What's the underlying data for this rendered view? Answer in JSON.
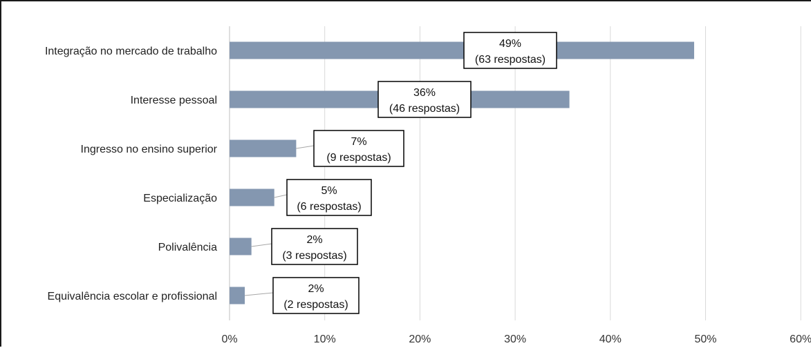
{
  "chart_data": {
    "type": "bar",
    "orientation": "horizontal",
    "title": "",
    "xlabel": "",
    "ylabel": "",
    "xlim": [
      0,
      60
    ],
    "x_ticks": [
      "0%",
      "10%",
      "20%",
      "30%",
      "40%",
      "50%",
      "60%"
    ],
    "grid": true,
    "bar_color": "#8497B0",
    "categories": [
      "Integração no mercado de trabalho",
      "Interesse pessoal",
      "Ingresso no ensino superior",
      "Especialização",
      "Polivalência",
      "Equivalência escolar e profissional"
    ],
    "values": [
      48.8,
      35.7,
      7.0,
      4.7,
      2.3,
      1.6
    ],
    "data_labels": [
      {
        "percent": "49%",
        "responses": "(63 respostas)"
      },
      {
        "percent": "36%",
        "responses": "(46 respostas)"
      },
      {
        "percent": "7%",
        "responses": "(9 respostas)"
      },
      {
        "percent": "5%",
        "responses": "(6 respostas)"
      },
      {
        "percent": "2%",
        "responses": "(3 respostas)"
      },
      {
        "percent": "2%",
        "responses": "(2 respostas)"
      }
    ]
  }
}
